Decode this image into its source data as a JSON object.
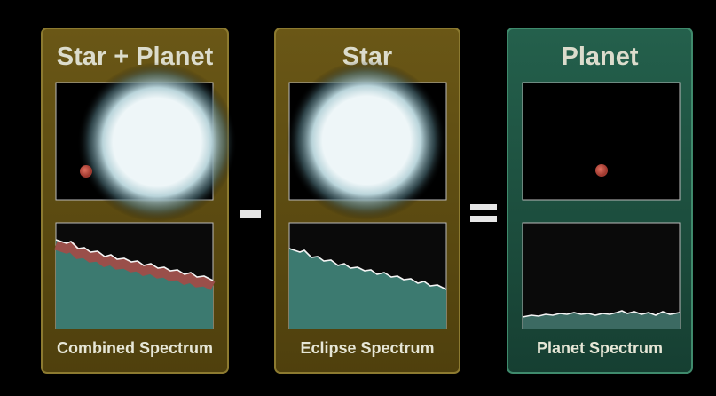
{
  "panels": [
    {
      "title": "Star + Planet",
      "caption": "Combined Spectrum"
    },
    {
      "title": "Star",
      "caption": "Eclipse Spectrum"
    },
    {
      "title": "Planet",
      "caption": "Planet Spectrum"
    }
  ]
}
